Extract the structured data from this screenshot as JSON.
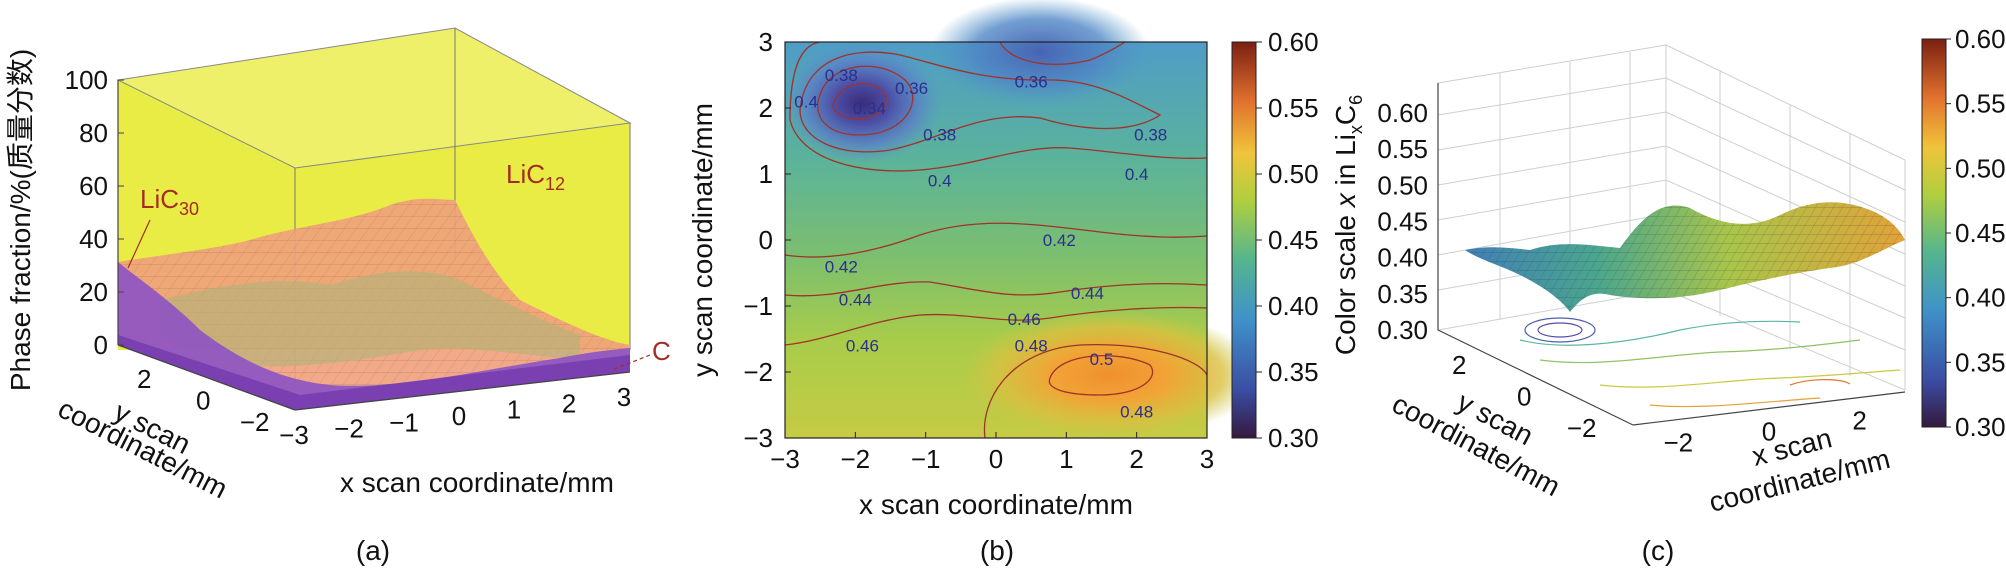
{
  "figure": {
    "panel_labels": [
      "(a)",
      "(b)",
      "(c)"
    ]
  },
  "chart_data": [
    {
      "type": "3d-surface",
      "panel": "(a)",
      "ylabel": "Phase fraction/%(质量分数)",
      "xlabel": "x scan coordinate/mm",
      "ylabel_depth_1": "y scan",
      "ylabel_depth_2": "coordinate/mm",
      "z_ticks": [
        "0",
        "20",
        "40",
        "60",
        "80",
        "100"
      ],
      "x_ticks": [
        "-3",
        "-2",
        "-1",
        "0",
        "1",
        "2",
        "3"
      ],
      "y_ticks": [
        "2",
        "0",
        "-2"
      ],
      "zlim": [
        0,
        100
      ],
      "xlim": [
        -3,
        3
      ],
      "ylim": [
        -3,
        3
      ],
      "phases": [
        {
          "name": "LiC",
          "sub": "12",
          "color": "#e8ec45",
          "approx_fraction": [
            45,
            70
          ]
        },
        {
          "name": "LiC",
          "sub": "30",
          "color": "#f0a07c",
          "approx_fraction": [
            10,
            48
          ]
        },
        {
          "name": "C",
          "sub": "",
          "color": "#8e55c2",
          "approx_fraction": [
            0,
            28
          ]
        }
      ]
    },
    {
      "type": "contour",
      "panel": "(b)",
      "xlabel": "x scan coordinate/mm",
      "ylabel": "y scan coordinate/mm",
      "x_ticks": [
        "-3",
        "-2",
        "-1",
        "0",
        "1",
        "2",
        "3"
      ],
      "y_ticks": [
        "3",
        "2",
        "1",
        "0",
        "-1",
        "-2",
        "-3"
      ],
      "xlim": [
        -3,
        3
      ],
      "ylim": [
        -3,
        3
      ],
      "colorbar": {
        "min": 0.3,
        "max": 0.6,
        "ticks": [
          "0.60",
          "0.55",
          "0.50",
          "0.45",
          "0.40",
          "0.35",
          "0.30"
        ]
      },
      "extrema": [
        {
          "x": -1.8,
          "y": 2.0,
          "value": 0.34,
          "kind": "min"
        },
        {
          "x": 0.9,
          "y": 2.8,
          "value": 0.35,
          "kind": "min"
        },
        {
          "x": 1.6,
          "y": -2.2,
          "value": 0.51,
          "kind": "max"
        }
      ],
      "contour_labels": [
        {
          "text": "0.38",
          "x": -2.2,
          "y": 2.5
        },
        {
          "text": "0.36",
          "x": -1.2,
          "y": 2.3
        },
        {
          "text": "0.4",
          "x": -2.7,
          "y": 2.1
        },
        {
          "text": "0.34",
          "x": -1.8,
          "y": 2.0
        },
        {
          "text": "0.36",
          "x": 0.5,
          "y": 2.4
        },
        {
          "text": "0.38",
          "x": -0.8,
          "y": 1.6
        },
        {
          "text": "0.38",
          "x": 2.2,
          "y": 1.6
        },
        {
          "text": "0.4",
          "x": -0.8,
          "y": 0.9
        },
        {
          "text": "0.4",
          "x": 2.0,
          "y": 1.0
        },
        {
          "text": "0.42",
          "x": 0.9,
          "y": 0.0
        },
        {
          "text": "0.42",
          "x": -2.2,
          "y": -0.4
        },
        {
          "text": "0.44",
          "x": -2.0,
          "y": -0.9
        },
        {
          "text": "0.44",
          "x": 1.3,
          "y": -0.8
        },
        {
          "text": "0.46",
          "x": 0.4,
          "y": -1.2
        },
        {
          "text": "0.46",
          "x": -1.9,
          "y": -1.6
        },
        {
          "text": "0.48",
          "x": 0.5,
          "y": -1.6
        },
        {
          "text": "0.5",
          "x": 1.5,
          "y": -1.8
        },
        {
          "text": "0.48",
          "x": 2.0,
          "y": -2.6
        }
      ]
    },
    {
      "type": "3d-surface",
      "panel": "(c)",
      "zlabel_prefix": "Color scale ",
      "zlabel_var": "x",
      "zlabel_mid": " in Li",
      "zlabel_sub1": "x",
      "zlabel_c": "C",
      "zlabel_sub2": "6",
      "xlabel_1": "x scan",
      "xlabel_2": "coordinate/mm",
      "ylabel_1": "y scan",
      "ylabel_2": "coordinate/mm",
      "z_ticks": [
        "0.60",
        "0.55",
        "0.50",
        "0.45",
        "0.40",
        "0.35",
        "0.30"
      ],
      "x_ticks": [
        "-2",
        "0",
        "2"
      ],
      "y_ticks": [
        "2",
        "0",
        "-2"
      ],
      "zlim": [
        0.3,
        0.6
      ],
      "colorbar": {
        "min": 0.3,
        "max": 0.6,
        "ticks": [
          "0.60",
          "0.55",
          "0.50",
          "0.45",
          "0.40",
          "0.35",
          "0.30"
        ]
      }
    }
  ]
}
